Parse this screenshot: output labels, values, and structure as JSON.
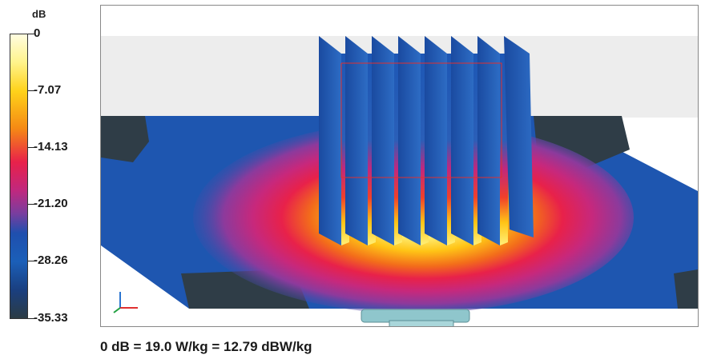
{
  "colorbar": {
    "unit": "dB",
    "ticks": [
      "0",
      "-7.07",
      "-14.13",
      "-21.20",
      "-28.26",
      "-35.33"
    ]
  },
  "caption": "0 dB = 19.0 W/kg = 12.79 dBW/kg",
  "colors": {
    "background_plate": "#1e56b0",
    "corner_dark": "#2f3d47",
    "hot": "#fff8b0",
    "mid": "#e8214a",
    "fin": "#1d57b5"
  }
}
